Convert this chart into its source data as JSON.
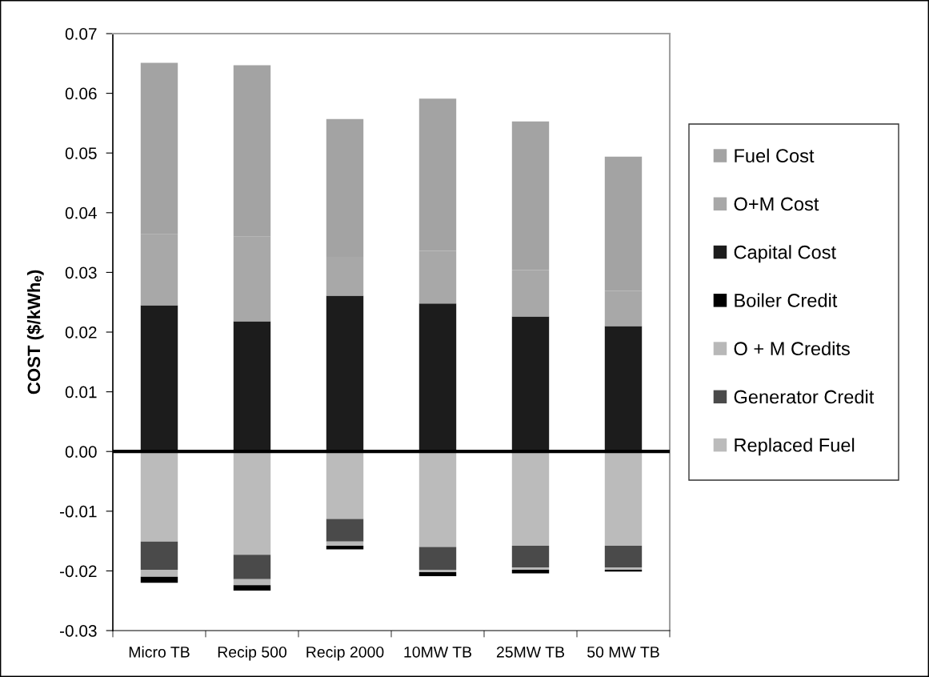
{
  "chart_data": {
    "type": "bar",
    "stacked": true,
    "ylabel": "COST ($/kWhₑ)",
    "categories": [
      "Micro TB",
      "Recip 500",
      "Recip 2000",
      "10MW TB",
      "25MW TB",
      "50 MW TB"
    ],
    "series": [
      {
        "name": "Replaced Fuel",
        "color": "#bbbbbb",
        "values": [
          -0.0151,
          -0.0173,
          -0.0113,
          -0.016,
          -0.0158,
          -0.0158
        ]
      },
      {
        "name": "Generator Credit",
        "color": "#4a4a4a",
        "values": [
          -0.0047,
          -0.0041,
          -0.0038,
          -0.0038,
          -0.0036,
          -0.0036
        ]
      },
      {
        "name": "O + M Credits",
        "color": "#b8b8b8",
        "values": [
          -0.0012,
          -0.001,
          -0.0007,
          -0.0004,
          -0.0004,
          -0.0004
        ]
      },
      {
        "name": "Boiler Credit",
        "color": "#000000",
        "values": [
          -0.001,
          -0.0009,
          -0.0006,
          -0.0007,
          -0.0006,
          -0.0003
        ]
      },
      {
        "name": "Capital Cost",
        "color": "#1c1c1c",
        "values": [
          0.0245,
          0.0218,
          0.0261,
          0.0248,
          0.0226,
          0.021
        ]
      },
      {
        "name": "O+M Cost",
        "color": "#a8a8a8",
        "values": [
          0.0119,
          0.0142,
          0.0065,
          0.0088,
          0.0078,
          0.0059
        ]
      },
      {
        "name": "Fuel Cost",
        "color": "#a3a3a3",
        "values": [
          0.0287,
          0.0287,
          0.0231,
          0.0255,
          0.0249,
          0.0225
        ]
      }
    ],
    "ylim": [
      -0.03,
      0.07
    ],
    "yticks": [
      -0.03,
      -0.02,
      -0.01,
      {
        "value": 0,
        "label": "0.00"
      },
      0.01,
      0.02,
      0.03,
      0.04,
      0.05,
      0.06,
      0.07
    ],
    "ref_lines": [
      {
        "axis": "y",
        "value": 0,
        "color": "#000000"
      }
    ],
    "legend": "right"
  }
}
